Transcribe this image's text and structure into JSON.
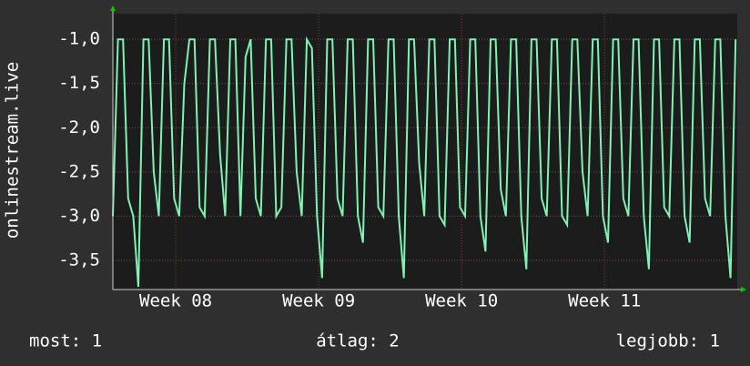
{
  "chart_data": {
    "type": "line",
    "ylabel": "onlinestream.live",
    "x": [
      0,
      0.25,
      0.5,
      0.75,
      1,
      1.25,
      1.5,
      1.75,
      2,
      2.25,
      2.5,
      2.75,
      3,
      3.25,
      3.5,
      3.75,
      4,
      4.25,
      4.5,
      4.75,
      5,
      5.25,
      5.5,
      5.75,
      6,
      6.25,
      6.5,
      6.75,
      7,
      7.25,
      7.5,
      7.75,
      8,
      8.25,
      8.5,
      8.75,
      9,
      9.25,
      9.5,
      9.75,
      10,
      10.25,
      10.5,
      10.75,
      11,
      11.25,
      11.5,
      11.75,
      12,
      12.25,
      12.5,
      12.75,
      13,
      13.25,
      13.5,
      13.75,
      14,
      14.25,
      14.5,
      14.75,
      15,
      15.25,
      15.5,
      15.75,
      16,
      16.25,
      16.5,
      16.75,
      17,
      17.25,
      17.5,
      17.75,
      18,
      18.25,
      18.5,
      18.75,
      19,
      19.25,
      19.5,
      19.75,
      20,
      20.25,
      20.5,
      20.75,
      21,
      21.25,
      21.5,
      21.75,
      22,
      22.25,
      22.5,
      22.75,
      23,
      23.25,
      23.5,
      23.75,
      24,
      24.25,
      24.5,
      24.75,
      25,
      25.25,
      25.5,
      25.75,
      26,
      26.25,
      26.5,
      26.75,
      27,
      27.25,
      27.5,
      27.75,
      28,
      28.25,
      28.5,
      28.75,
      29,
      29.25,
      29.5,
      29.75,
      30,
      30.25,
      30.5
    ],
    "series": [
      {
        "color": "#7ff2b4",
        "values": [
          -3.0,
          -1.0,
          -1.0,
          -2.8,
          -3.0,
          -3.8,
          -1.0,
          -1.0,
          -2.5,
          -3.0,
          -1.0,
          -1.0,
          -2.8,
          -3.0,
          -1.5,
          -1.0,
          -1.0,
          -2.9,
          -3.0,
          -1.0,
          -1.0,
          -2.3,
          -3.0,
          -1.0,
          -1.0,
          -3.0,
          -1.2,
          -1.0,
          -2.8,
          -3.0,
          -1.0,
          -1.0,
          -3.0,
          -2.9,
          -1.0,
          -1.0,
          -2.5,
          -3.0,
          -1.0,
          -1.1,
          -3.0,
          -3.7,
          -1.0,
          -1.0,
          -2.8,
          -3.0,
          -1.0,
          -1.0,
          -3.0,
          -3.3,
          -1.0,
          -1.0,
          -2.9,
          -3.0,
          -1.0,
          -1.0,
          -3.0,
          -3.7,
          -1.0,
          -1.0,
          -2.4,
          -3.0,
          -1.0,
          -1.0,
          -3.0,
          -3.1,
          -1.0,
          -1.0,
          -2.9,
          -3.0,
          -1.0,
          -1.0,
          -3.0,
          -3.4,
          -1.0,
          -1.0,
          -2.7,
          -3.0,
          -1.0,
          -1.0,
          -3.0,
          -3.6,
          -1.0,
          -1.0,
          -2.8,
          -3.0,
          -1.0,
          -1.0,
          -3.0,
          -3.1,
          -1.0,
          -1.0,
          -2.5,
          -3.0,
          -1.0,
          -1.0,
          -3.0,
          -3.3,
          -1.0,
          -1.0,
          -2.8,
          -3.0,
          -1.0,
          -1.0,
          -3.0,
          -3.6,
          -1.0,
          -1.0,
          -2.9,
          -3.0,
          -1.0,
          -1.0,
          -3.0,
          -3.3,
          -1.0,
          -1.0,
          -2.8,
          -3.0,
          -1.0,
          -1.0,
          -3.0,
          -3.7,
          -1.0
        ]
      }
    ],
    "xlim": [
      0,
      30.58
    ],
    "xticks": [
      {
        "value": 3.08,
        "label": "Week 08"
      },
      {
        "value": 10.08,
        "label": "Week 09"
      },
      {
        "value": 17.08,
        "label": "Week 10"
      },
      {
        "value": 24.08,
        "label": "Week 11"
      }
    ],
    "ylim": [
      -3.83,
      -0.71
    ],
    "yticks": [
      {
        "value": -1,
        "label": "-1,0"
      },
      {
        "value": -1.5,
        "label": "-1,5"
      },
      {
        "value": -2,
        "label": "-2,0"
      },
      {
        "value": -2.5,
        "label": "-2,5"
      },
      {
        "value": -3,
        "label": "-3,0"
      },
      {
        "value": -3.5,
        "label": "-3,5"
      }
    ],
    "grid": true,
    "annotations": [
      "most: 1",
      "átlag: 2",
      "legjobb: 1"
    ]
  }
}
